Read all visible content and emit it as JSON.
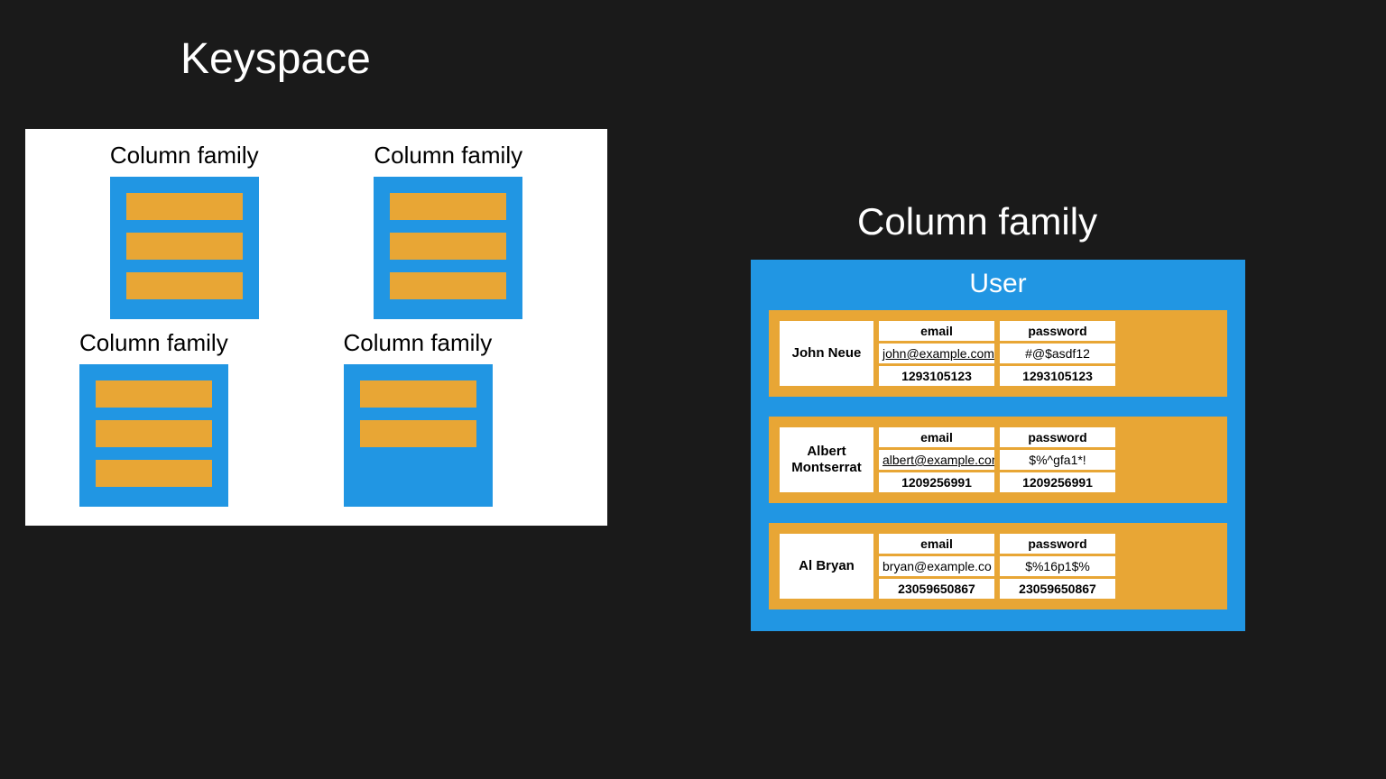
{
  "colors": {
    "background": "#1a1a1a",
    "panel_white": "#ffffff",
    "blue": "#2196e3",
    "orange": "#e8a635",
    "text_white": "#ffffff",
    "text_black": "#000000"
  },
  "typography": {
    "title_fontsize": 48,
    "right_title_fontsize": 42,
    "cf_label_fontsize": 26,
    "user_title_fontsize": 30,
    "rowkey_fontsize": 15,
    "cell_fontsize": 14
  },
  "keyspace": {
    "title": "Keyspace",
    "column_families": [
      {
        "label": "Column family",
        "bars": 3
      },
      {
        "label": "Column family",
        "bars": 3
      },
      {
        "label": "Column family",
        "bars": 3
      },
      {
        "label": "Column family",
        "bars": 2
      }
    ]
  },
  "detail": {
    "title": "Column family",
    "table_name": "User",
    "rows": [
      {
        "key": "John Neue",
        "columns": [
          {
            "name": "email",
            "value": "john@example.com",
            "timestamp": "1293105123",
            "underline": true
          },
          {
            "name": "password",
            "value": "#@$asdf12",
            "timestamp": "1293105123",
            "underline": false
          }
        ]
      },
      {
        "key": "Albert Montserrat",
        "columns": [
          {
            "name": "email",
            "value": "albert@example.com",
            "timestamp": "1209256991",
            "underline": true
          },
          {
            "name": "password",
            "value": "$%^gfa1*!",
            "timestamp": "1209256991",
            "underline": false
          }
        ]
      },
      {
        "key": "Al Bryan",
        "columns": [
          {
            "name": "email",
            "value": "bryan@example.co",
            "timestamp": "23059650867",
            "underline": false
          },
          {
            "name": "password",
            "value": "$%16p1$%",
            "timestamp": "23059650867",
            "underline": false
          }
        ]
      }
    ]
  }
}
